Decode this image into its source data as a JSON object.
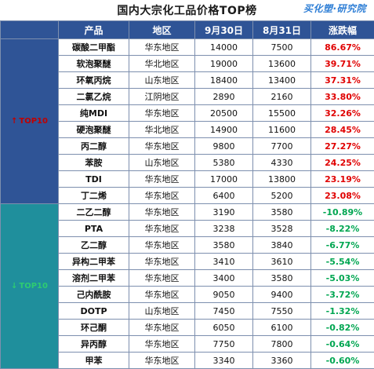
{
  "title": "国内大宗化工品价格TOP榜",
  "logo": "买化塑·研究院",
  "columns": [
    "产品",
    "地区",
    "9月30日",
    "8月31日",
    "涨跌幅"
  ],
  "top_label": "TOP10",
  "bottom_label": "TOP10",
  "top_rows": [
    {
      "product": "碳酸二甲酯",
      "region": "华东地区",
      "sep30": "14000",
      "aug31": "7500",
      "change": "86.67%"
    },
    {
      "product": "软泡聚醚",
      "region": "华北地区",
      "sep30": "19000",
      "aug31": "13600",
      "change": "39.71%"
    },
    {
      "product": "环氧丙烷",
      "region": "山东地区",
      "sep30": "18400",
      "aug31": "13400",
      "change": "37.31%"
    },
    {
      "product": "二氯乙烷",
      "region": "江阴地区",
      "sep30": "2890",
      "aug31": "2160",
      "change": "33.80%"
    },
    {
      "product": "纯MDI",
      "region": "华东地区",
      "sep30": "20500",
      "aug31": "15500",
      "change": "32.26%"
    },
    {
      "product": "硬泡聚醚",
      "region": "华北地区",
      "sep30": "14900",
      "aug31": "11600",
      "change": "28.45%"
    },
    {
      "product": "丙二醇",
      "region": "华东地区",
      "sep30": "9800",
      "aug31": "7700",
      "change": "27.27%"
    },
    {
      "product": "苯胺",
      "region": "山东地区",
      "sep30": "5380",
      "aug31": "4330",
      "change": "24.25%"
    },
    {
      "product": "TDI",
      "region": "华东地区",
      "sep30": "17000",
      "aug31": "13800",
      "change": "23.19%"
    },
    {
      "product": "丁二烯",
      "region": "华东地区",
      "sep30": "6400",
      "aug31": "5200",
      "change": "23.08%"
    }
  ],
  "bottom_rows": [
    {
      "product": "二乙二醇",
      "region": "华东地区",
      "sep30": "3190",
      "aug31": "3580",
      "change": "-10.89%"
    },
    {
      "product": "PTA",
      "region": "华东地区",
      "sep30": "3238",
      "aug31": "3528",
      "change": "-8.22%"
    },
    {
      "product": "乙二醇",
      "region": "华东地区",
      "sep30": "3580",
      "aug31": "3840",
      "change": "-6.77%"
    },
    {
      "product": "异构二甲苯",
      "region": "华东地区",
      "sep30": "3410",
      "aug31": "3610",
      "change": "-5.54%"
    },
    {
      "product": "溶剂二甲苯",
      "region": "华东地区",
      "sep30": "3400",
      "aug31": "3580",
      "change": "-5.03%"
    },
    {
      "product": "己内酰胺",
      "region": "华东地区",
      "sep30": "9050",
      "aug31": "9400",
      "change": "-3.72%"
    },
    {
      "product": "DOTP",
      "region": "山东地区",
      "sep30": "7450",
      "aug31": "7550",
      "change": "-1.32%"
    },
    {
      "product": "环己酮",
      "region": "华东地区",
      "sep30": "6050",
      "aug31": "6100",
      "change": "-0.82%"
    },
    {
      "product": "异丙醇",
      "region": "华东地区",
      "sep30": "7750",
      "aug31": "7800",
      "change": "-0.64%"
    },
    {
      "product": "甲苯",
      "region": "华东地区",
      "sep30": "3340",
      "aug31": "3360",
      "change": "-0.60%"
    }
  ]
}
